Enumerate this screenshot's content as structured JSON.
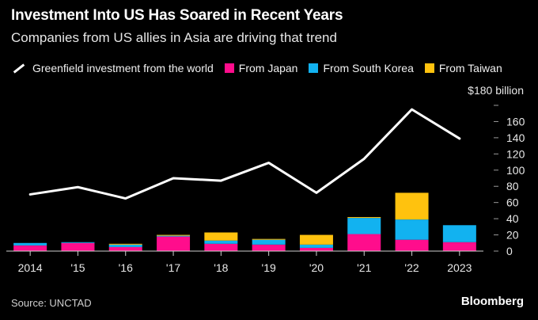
{
  "header": {
    "title": "Investment Into US Has Soared in Recent Years",
    "subtitle": "Companies from US allies in Asia are driving that trend"
  },
  "footer": {
    "source": "Source: UNCTAD",
    "brand": "Bloomberg"
  },
  "colors": {
    "background": "#000000",
    "line": "#ffffff",
    "japan": "#ff0d8c",
    "south_korea": "#12b2f0",
    "taiwan": "#ffc20e"
  },
  "chart_data": {
    "type": "bar",
    "categories": [
      "2014",
      "'15",
      "'16",
      "'17",
      "'18",
      "'19",
      "'20",
      "'21",
      "'22",
      "2023"
    ],
    "ylim": [
      0,
      180
    ],
    "yticks": [
      {
        "value": 0,
        "label": "0"
      },
      {
        "value": 20,
        "label": "20"
      },
      {
        "value": 40,
        "label": "40"
      },
      {
        "value": 60,
        "label": "60"
      },
      {
        "value": 80,
        "label": "80"
      },
      {
        "value": 100,
        "label": "100"
      },
      {
        "value": 120,
        "label": "120"
      },
      {
        "value": 140,
        "label": "140"
      },
      {
        "value": 160,
        "label": "160"
      },
      {
        "value": 180,
        "label": "$180 billion"
      }
    ],
    "legend_position": "top",
    "grid": false,
    "line_series": {
      "name": "Greenfield investment from the world",
      "values": [
        70,
        79,
        65,
        90,
        87,
        109,
        72,
        114,
        175,
        139
      ]
    },
    "stacked_series": [
      {
        "name": "From Japan",
        "color": "#ff0d8c",
        "values": [
          7,
          10,
          5,
          18,
          9,
          8,
          4,
          21,
          14,
          11
        ]
      },
      {
        "name": "From South Korea",
        "color": "#12b2f0",
        "values": [
          3,
          1,
          3,
          1,
          4,
          6,
          4,
          20,
          25,
          21
        ]
      },
      {
        "name": "From Taiwan",
        "color": "#ffc20e",
        "values": [
          0,
          0,
          1,
          1,
          10,
          1,
          12,
          1,
          33,
          0
        ]
      }
    ]
  }
}
